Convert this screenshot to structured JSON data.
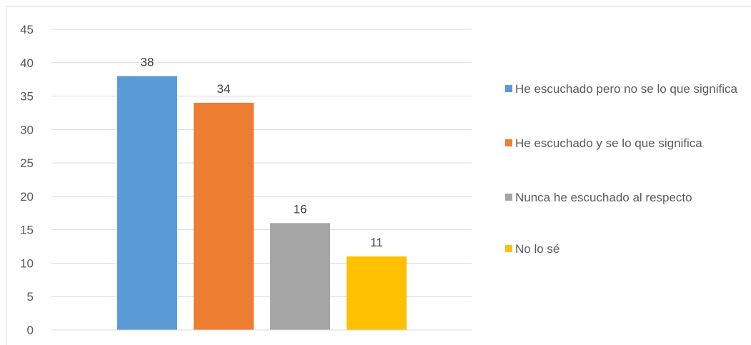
{
  "chart_data": {
    "type": "bar",
    "categories": [
      "He escuchado pero no se lo que significa",
      "He escuchado y se lo que significa",
      "Nunca he escuchado al respecto",
      "No lo sé"
    ],
    "values": [
      38,
      34,
      16,
      11
    ],
    "data_labels": [
      "38",
      "34",
      "16",
      "11"
    ],
    "colors": [
      "#5b9bd5",
      "#ed7d31",
      "#a5a5a5",
      "#ffc000"
    ],
    "ylim": [
      0,
      45
    ],
    "yticks": [
      "0",
      "5",
      "10",
      "15",
      "20",
      "25",
      "30",
      "35",
      "40",
      "45"
    ],
    "grid": true,
    "legend_position": "right",
    "title": "",
    "xlabel": "",
    "ylabel": ""
  }
}
